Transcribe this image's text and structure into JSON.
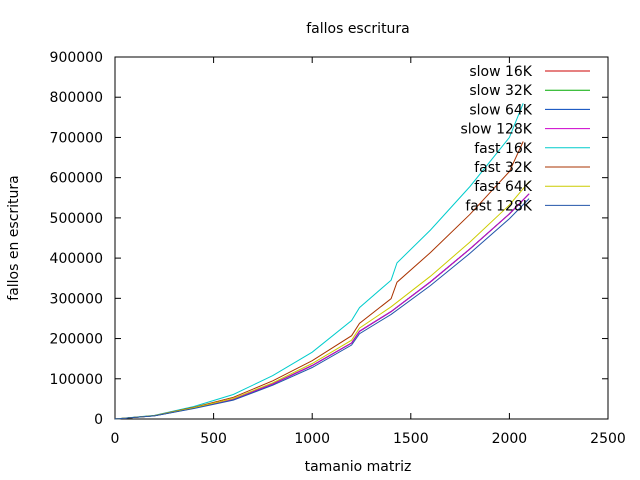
{
  "chart_data": {
    "type": "line",
    "title": "fallos escritura",
    "xlabel": "tamanio matriz",
    "ylabel": "fallos en escritura",
    "xlim": [
      0,
      2500
    ],
    "ylim": [
      0,
      900000
    ],
    "xticks": [
      0,
      500,
      1000,
      1500,
      2000,
      2500
    ],
    "yticks": [
      0,
      100000,
      200000,
      300000,
      400000,
      500000,
      600000,
      700000,
      800000,
      900000
    ],
    "grid": false,
    "legend_position": "top-right",
    "series": [
      {
        "name": "slow 16K",
        "color": "#cc0000",
        "x": [
          0,
          200,
          400,
          600,
          800,
          1000,
          1200,
          1240,
          1400,
          1600,
          1800,
          2000,
          2100
        ],
        "y": [
          0,
          8000,
          27000,
          49000,
          87000,
          133000,
          189000,
          218000,
          267000,
          341000,
          423000,
          510000,
          560000
        ]
      },
      {
        "name": "slow 32K",
        "color": "#00aa00",
        "x": [
          0,
          200,
          400,
          600,
          800,
          1000,
          1200,
          1240,
          1400,
          1600,
          1800,
          2000,
          2100
        ],
        "y": [
          0,
          8000,
          27000,
          49000,
          87000,
          133000,
          189000,
          218000,
          267000,
          341000,
          423000,
          510000,
          560000
        ]
      },
      {
        "name": "slow 64K",
        "color": "#0044bb",
        "x": [
          0,
          200,
          400,
          600,
          800,
          1000,
          1200,
          1240,
          1400,
          1600,
          1800,
          2000,
          2100
        ],
        "y": [
          0,
          8000,
          27000,
          49000,
          87000,
          133000,
          189000,
          218000,
          267000,
          341000,
          423000,
          510000,
          560000
        ]
      },
      {
        "name": "slow 128K",
        "color": "#cc00cc",
        "x": [
          0,
          200,
          400,
          600,
          800,
          1000,
          1200,
          1240,
          1400,
          1600,
          1800,
          2000,
          2100
        ],
        "y": [
          0,
          8000,
          27000,
          49000,
          87000,
          133000,
          189000,
          218000,
          267000,
          341000,
          423000,
          510000,
          560000
        ]
      },
      {
        "name": "fast 16K",
        "color": "#00cccc",
        "x": [
          0,
          200,
          400,
          600,
          800,
          1000,
          1200,
          1240,
          1400,
          1430,
          1600,
          1800,
          2000,
          2070
        ],
        "y": [
          0,
          9000,
          31000,
          61000,
          108000,
          166000,
          245000,
          277000,
          345000,
          388000,
          470000,
          578000,
          700000,
          785000
        ]
      },
      {
        "name": "fast 32K",
        "color": "#aa3300",
        "x": [
          0,
          200,
          400,
          600,
          800,
          1000,
          1200,
          1240,
          1400,
          1430,
          1600,
          1800,
          2000,
          2070
        ],
        "y": [
          0,
          8500,
          29000,
          54000,
          95000,
          145000,
          207000,
          238000,
          299000,
          340000,
          414000,
          509000,
          615000,
          690000
        ]
      },
      {
        "name": "fast 64K",
        "color": "#cccc00",
        "x": [
          0,
          200,
          400,
          600,
          800,
          1000,
          1200,
          1240,
          1400,
          1600,
          1800,
          2000,
          2100
        ],
        "y": [
          0,
          8200,
          28000,
          51000,
          90000,
          138000,
          196000,
          226000,
          279000,
          355000,
          440000,
          532000,
          590000
        ]
      },
      {
        "name": "fast 128K",
        "color": "#2255aa",
        "x": [
          0,
          200,
          400,
          600,
          800,
          1000,
          1200,
          1240,
          1400,
          1600,
          1800,
          2000,
          2100
        ],
        "y": [
          0,
          7800,
          26000,
          47000,
          84000,
          128000,
          184000,
          212000,
          260000,
          332000,
          412000,
          498000,
          548000
        ]
      }
    ]
  }
}
